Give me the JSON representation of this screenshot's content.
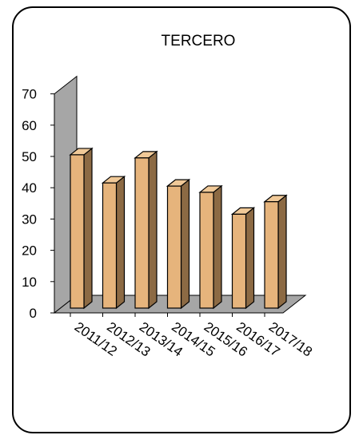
{
  "chart_data": {
    "type": "bar",
    "style": "3d-column",
    "title": "TERCERO",
    "categories": [
      "2011/12",
      "2012/13",
      "2013/14",
      "2014/15",
      "2015/16",
      "2016/17",
      "2017/18"
    ],
    "values": [
      49,
      40,
      48,
      39,
      37,
      30,
      34
    ],
    "ylim": [
      0,
      70
    ],
    "yticks": [
      0,
      10,
      20,
      30,
      40,
      50,
      60,
      70
    ],
    "xlabel": "",
    "ylabel": "",
    "grid": false,
    "legend": "none",
    "colors": {
      "bar_front": "#e6b47c",
      "bar_top": "#f0c998",
      "bar_side": "#8c6a44",
      "back_wall": "#a6a6a6",
      "floor": "#a6a6a6",
      "outline": "#000000"
    }
  }
}
